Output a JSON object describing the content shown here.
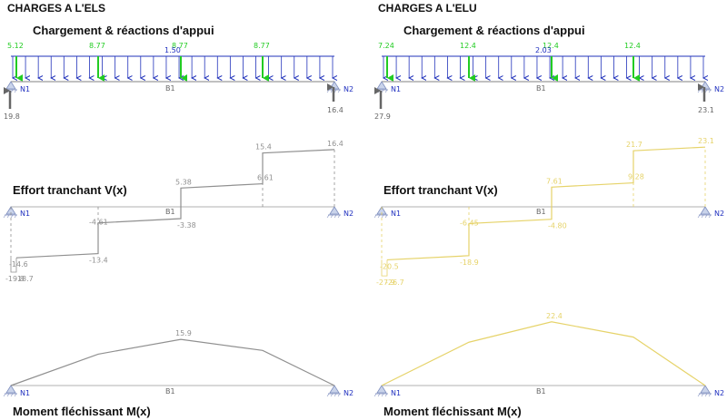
{
  "els": {
    "title": "CHARGES A L'ELS",
    "sections": {
      "loads": "Chargement & réactions d'appui",
      "shear": "Effort tranchant V(x)",
      "moment": "Moment fléchissant M(x)"
    },
    "point_loads": [
      "5.12",
      "8.77",
      "8.77",
      "8.77"
    ],
    "load_marker": "1.50",
    "reactions": [
      "19.8",
      "16.4"
    ],
    "nodes": [
      "N1",
      "N2"
    ],
    "beam": "B1",
    "shear_labels": [
      "16.4",
      "15.4",
      "6.61",
      "5.38",
      "-3.38",
      "-4.61",
      "-13.4",
      "-14.6",
      "-19.8",
      "-18.7"
    ],
    "moment_max": "15.9",
    "color": "#909090"
  },
  "elu": {
    "title": "CHARGES A L'ELU",
    "sections": {
      "loads": "Chargement & réactions d'appui",
      "shear": "Effort tranchant V(x)",
      "moment": "Moment fléchissant M(x)"
    },
    "point_loads": [
      "7.24",
      "12.4",
      "12.4",
      "12.4"
    ],
    "load_marker": "2.03",
    "reactions": [
      "27.9",
      "23.1"
    ],
    "nodes": [
      "N1",
      "N2"
    ],
    "beam": "B1",
    "shear_labels": [
      "23.1",
      "21.7",
      "9.28",
      "7.61",
      "-4.80",
      "-6.45",
      "-18.9",
      "-20.5",
      "-27.9",
      "-26.7"
    ],
    "moment_max": "22.4",
    "color": "#e6d36a"
  }
}
